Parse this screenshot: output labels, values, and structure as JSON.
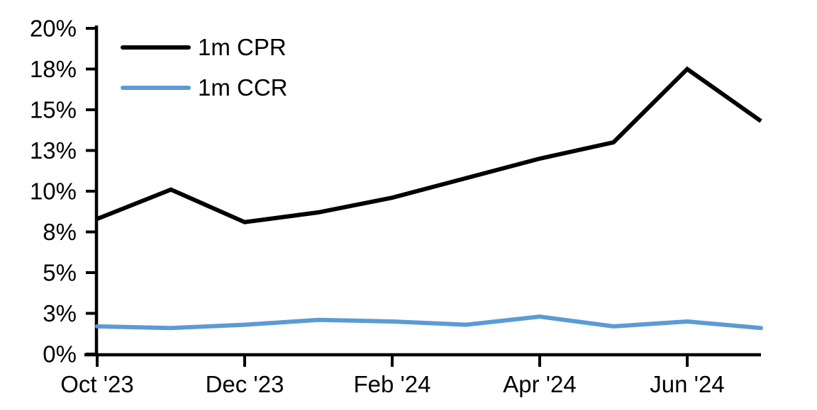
{
  "chart_data": {
    "type": "line",
    "title": "",
    "unit": "%",
    "categories": [
      "Oct '23",
      "Nov '23",
      "Dec '23",
      "Jan '24",
      "Feb '24",
      "Mar '24",
      "Apr '24",
      "May '24",
      "Jun '24",
      "Jul '24"
    ],
    "series": [
      {
        "name": "1m CPR",
        "color": "#000000",
        "values": [
          8.3,
          10.1,
          8.1,
          8.7,
          9.6,
          10.8,
          12.0,
          13.0,
          17.5,
          14.3
        ]
      },
      {
        "name": "1m CCR",
        "color": "#5B9BD5",
        "values": [
          1.7,
          1.6,
          1.8,
          2.1,
          2.0,
          1.8,
          2.3,
          1.7,
          2.0,
          1.6
        ]
      }
    ],
    "y_axis": {
      "ylim": [
        0,
        20
      ],
      "ticks": [
        {
          "value": 0,
          "label": "0%"
        },
        {
          "value": 2.5,
          "label": "3%"
        },
        {
          "value": 5,
          "label": "5%"
        },
        {
          "value": 7.5,
          "label": "8%"
        },
        {
          "value": 10,
          "label": "10%"
        },
        {
          "value": 12.5,
          "label": "13%"
        },
        {
          "value": 15,
          "label": "15%"
        },
        {
          "value": 17.5,
          "label": "18%"
        },
        {
          "value": 20,
          "label": "20%"
        }
      ]
    },
    "x_axis": {
      "ticks": [
        {
          "index": 0,
          "label": "Oct '23"
        },
        {
          "index": 2,
          "label": "Dec '23"
        },
        {
          "index": 4,
          "label": "Feb '24"
        },
        {
          "index": 6,
          "label": "Apr '24"
        },
        {
          "index": 8,
          "label": "Jun '24"
        }
      ]
    },
    "legend": {
      "position": "top-left",
      "entries": [
        "1m CPR",
        "1m CCR"
      ]
    },
    "grid": false
  }
}
